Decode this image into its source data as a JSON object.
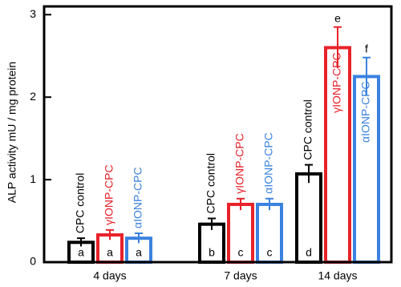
{
  "chart_data": {
    "type": "bar",
    "y_label": "ALP activity mU / mg protein",
    "categories": [
      "4 days",
      "7 days",
      "14 days"
    ],
    "series": [
      {
        "name": "CPC control",
        "color": "#000000",
        "values": [
          0.24,
          0.46,
          1.07
        ],
        "errors": [
          0.05,
          0.07,
          0.11
        ],
        "letters": [
          "a",
          "b",
          "d"
        ]
      },
      {
        "name": "γIONP-CPC",
        "color": "#e8222a",
        "values": [
          0.33,
          0.7,
          2.6
        ],
        "errors": [
          0.06,
          0.07,
          0.25
        ],
        "letters": [
          "a",
          "c",
          "e"
        ]
      },
      {
        "name": "αIONP-CPC",
        "color": "#3b82e0",
        "values": [
          0.29,
          0.7,
          2.25
        ],
        "errors": [
          0.06,
          0.07,
          0.23
        ],
        "letters": [
          "a",
          "c",
          "f"
        ]
      }
    ],
    "ylim": [
      0,
      3.1
    ],
    "yticks": [
      0,
      1,
      2,
      3
    ]
  }
}
